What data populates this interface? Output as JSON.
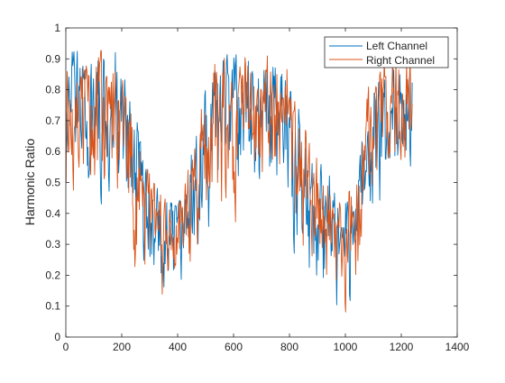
{
  "chart_data": {
    "type": "line",
    "title": "",
    "xlabel": "",
    "ylabel": "Harmonic Ratio",
    "xlim": [
      0,
      1400
    ],
    "ylim": [
      0,
      1
    ],
    "x_ticks": [
      "0",
      "200",
      "400",
      "600",
      "800",
      "1000",
      "1200",
      "1400"
    ],
    "y_ticks": [
      "0",
      "0.1",
      "0.2",
      "0.3",
      "0.4",
      "0.5",
      "0.6",
      "0.7",
      "0.8",
      "0.9",
      "1"
    ],
    "grid": false,
    "legend_position": "top-right",
    "x_range": [
      1,
      1240
    ],
    "envelope": {
      "x": [
        0,
        100,
        180,
        240,
        300,
        350,
        400,
        440,
        480,
        540,
        600,
        650,
        700,
        760,
        800,
        840,
        880,
        920,
        960,
        1000,
        1040,
        1080,
        1120,
        1160,
        1200,
        1240
      ],
      "upper": [
        0.92,
        0.93,
        0.92,
        0.75,
        0.55,
        0.45,
        0.42,
        0.55,
        0.75,
        0.9,
        0.93,
        0.93,
        0.92,
        0.93,
        0.92,
        0.72,
        0.6,
        0.55,
        0.5,
        0.48,
        0.5,
        0.8,
        0.92,
        0.93,
        0.93,
        0.9
      ],
      "lower": [
        0.45,
        0.4,
        0.4,
        0.22,
        0.15,
        0.1,
        0.08,
        0.12,
        0.25,
        0.3,
        0.35,
        0.4,
        0.38,
        0.38,
        0.35,
        0.15,
        0.12,
        0.1,
        0.1,
        0.08,
        0.12,
        0.3,
        0.4,
        0.4,
        0.45,
        0.45
      ]
    },
    "series": [
      {
        "name": "Left Channel",
        "color": "#0072bd",
        "seed": 7
      },
      {
        "name": "Right Channel",
        "color": "#d95319",
        "seed": 19
      }
    ]
  }
}
